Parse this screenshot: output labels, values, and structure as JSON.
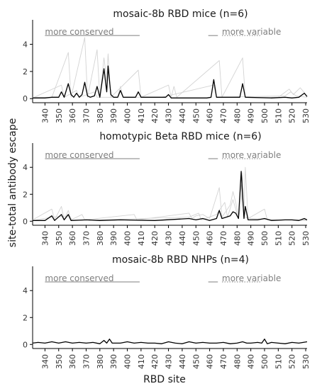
{
  "figure": {
    "ylabel": "site-total antibody escape",
    "xlabel": "RBD site"
  },
  "chart_data": [
    {
      "type": "line",
      "title": "mosaic-8b RBD mice (n=6)",
      "xlim": [
        331,
        531
      ],
      "ylim": [
        -0.3,
        5.8
      ],
      "yticks": [
        0,
        2,
        4
      ],
      "xticks": [
        340,
        350,
        360,
        370,
        380,
        390,
        400,
        410,
        420,
        430,
        440,
        450,
        460,
        470,
        480,
        490,
        500,
        510,
        520,
        530
      ],
      "annotations": {
        "left": "more conserved",
        "right": "more variable"
      },
      "series": [
        {
          "role": "mean",
          "color": "#000000",
          "points": [
            [
              331,
              0.05
            ],
            [
              340,
              0.05
            ],
            [
              345,
              0.1
            ],
            [
              350,
              0.1
            ],
            [
              352,
              0.5
            ],
            [
              354,
              0.1
            ],
            [
              357,
              1.1
            ],
            [
              359,
              0.3
            ],
            [
              361,
              0.1
            ],
            [
              363,
              0.4
            ],
            [
              365,
              0.1
            ],
            [
              367,
              0.3
            ],
            [
              369,
              1.2
            ],
            [
              371,
              0.2
            ],
            [
              373,
              0.1
            ],
            [
              376,
              0.2
            ],
            [
              378,
              0.9
            ],
            [
              380,
              0.1
            ],
            [
              383,
              2.2
            ],
            [
              385,
              0.5
            ],
            [
              386,
              2.4
            ],
            [
              388,
              0.3
            ],
            [
              390,
              0.1
            ],
            [
              393,
              0.1
            ],
            [
              395,
              0.6
            ],
            [
              397,
              0.1
            ],
            [
              406,
              0.1
            ],
            [
              408,
              0.5
            ],
            [
              410,
              0.1
            ],
            [
              428,
              0.1
            ],
            [
              430,
              0.3
            ],
            [
              432,
              0.05
            ],
            [
              458,
              0.05
            ],
            [
              461,
              0.1
            ],
            [
              463,
              1.4
            ],
            [
              465,
              0.1
            ],
            [
              482,
              0.1
            ],
            [
              484,
              1.1
            ],
            [
              486,
              0.1
            ],
            [
              505,
              0.05
            ],
            [
              515,
              0.1
            ],
            [
              520,
              0.05
            ],
            [
              525,
              0.1
            ],
            [
              529,
              0.4
            ],
            [
              531,
              0.15
            ]
          ]
        },
        {
          "role": "animal",
          "color": "#d3d3d3",
          "points": [
            [
              331,
              0.1
            ],
            [
              345,
              0.1
            ],
            [
              357,
              3.4
            ],
            [
              359,
              0.1
            ],
            [
              369,
              4.5
            ],
            [
              371,
              0.1
            ],
            [
              378,
              3.6
            ],
            [
              380,
              0.1
            ],
            [
              383,
              3.0
            ],
            [
              385,
              1.3
            ],
            [
              386,
              3.3
            ],
            [
              388,
              0.1
            ],
            [
              408,
              2.1
            ],
            [
              410,
              0.1
            ],
            [
              430,
              1.0
            ],
            [
              432,
              0.1
            ],
            [
              434,
              0.9
            ],
            [
              436,
              0.1
            ],
            [
              467,
              2.8
            ],
            [
              469,
              0.1
            ],
            [
              484,
              3.0
            ],
            [
              486,
              0.1
            ],
            [
              510,
              0.1
            ],
            [
              514,
              0.4
            ],
            [
              518,
              0.7
            ],
            [
              521,
              0.3
            ],
            [
              526,
              0.8
            ],
            [
              531,
              0.2
            ]
          ]
        },
        {
          "role": "animal",
          "color": "#d3d3d3",
          "points": [
            [
              331,
              0.05
            ],
            [
              352,
              1.0
            ],
            [
              354,
              0.1
            ],
            [
              363,
              0.6
            ],
            [
              365,
              0.1
            ],
            [
              376,
              0.5
            ],
            [
              378,
              0.1
            ],
            [
              393,
              0.1
            ],
            [
              395,
              0.9
            ],
            [
              397,
              0.1
            ],
            [
              425,
              0.1
            ],
            [
              463,
              1.0
            ],
            [
              465,
              0.1
            ],
            [
              515,
              0.2
            ],
            [
              519,
              0.5
            ],
            [
              523,
              0.2
            ],
            [
              531,
              0.1
            ]
          ]
        }
      ]
    },
    {
      "type": "line",
      "title": "homotypic Beta RBD mice (n=6)",
      "xlim": [
        331,
        531
      ],
      "ylim": [
        -0.3,
        5.8
      ],
      "yticks": [
        0,
        2,
        4
      ],
      "xticks": [
        340,
        350,
        360,
        370,
        380,
        390,
        400,
        410,
        420,
        430,
        440,
        450,
        460,
        470,
        480,
        490,
        500,
        510,
        520,
        530
      ],
      "annotations": {
        "left": "more conserved",
        "right": "more variable"
      },
      "series": [
        {
          "role": "mean",
          "color": "#000000",
          "points": [
            [
              331,
              0.05
            ],
            [
              340,
              0.05
            ],
            [
              345,
              0.4
            ],
            [
              347,
              0.05
            ],
            [
              352,
              0.5
            ],
            [
              354,
              0.1
            ],
            [
              357,
              0.5
            ],
            [
              359,
              0.05
            ],
            [
              370,
              0.1
            ],
            [
              380,
              0.05
            ],
            [
              395,
              0.1
            ],
            [
              420,
              0.05
            ],
            [
              445,
              0.2
            ],
            [
              450,
              0.1
            ],
            [
              455,
              0.2
            ],
            [
              460,
              0.05
            ],
            [
              465,
              0.2
            ],
            [
              467,
              0.8
            ],
            [
              469,
              0.2
            ],
            [
              472,
              0.3
            ],
            [
              475,
              0.4
            ],
            [
              477,
              0.7
            ],
            [
              479,
              0.6
            ],
            [
              481,
              0.2
            ],
            [
              483,
              3.7
            ],
            [
              485,
              0.2
            ],
            [
              486,
              1.1
            ],
            [
              488,
              0.1
            ],
            [
              495,
              0.1
            ],
            [
              500,
              0.2
            ],
            [
              505,
              0.05
            ],
            [
              515,
              0.1
            ],
            [
              520,
              0.1
            ],
            [
              525,
              0.05
            ],
            [
              529,
              0.2
            ],
            [
              531,
              0.1
            ]
          ]
        },
        {
          "role": "animal",
          "color": "#d3d3d3",
          "points": [
            [
              331,
              0.1
            ],
            [
              345,
              0.9
            ],
            [
              347,
              0.1
            ],
            [
              352,
              1.1
            ],
            [
              354,
              0.1
            ],
            [
              357,
              0.8
            ],
            [
              359,
              0.1
            ],
            [
              367,
              0.5
            ],
            [
              369,
              0.1
            ],
            [
              405,
              0.5
            ],
            [
              407,
              0.1
            ],
            [
              445,
              0.6
            ],
            [
              447,
              0.2
            ],
            [
              450,
              0.4
            ],
            [
              455,
              0.5
            ],
            [
              460,
              0.2
            ],
            [
              467,
              2.5
            ],
            [
              469,
              0.3
            ],
            [
              475,
              1.2
            ],
            [
              477,
              2.2
            ],
            [
              479,
              1.4
            ],
            [
              481,
              0.3
            ],
            [
              483,
              1.2
            ],
            [
              484,
              3.6
            ],
            [
              485,
              0.5
            ],
            [
              486,
              4.0
            ],
            [
              488,
              0.2
            ],
            [
              500,
              0.9
            ],
            [
              502,
              0.1
            ],
            [
              520,
              0.1
            ],
            [
              531,
              0.1
            ]
          ]
        },
        {
          "role": "animal",
          "color": "#d3d3d3",
          "points": [
            [
              331,
              0.05
            ],
            [
              345,
              0.3
            ],
            [
              358,
              0.4
            ],
            [
              360,
              0.05
            ],
            [
              445,
              0.3
            ],
            [
              452,
              0.6
            ],
            [
              454,
              0.1
            ],
            [
              465,
              0.5
            ],
            [
              471,
              1.4
            ],
            [
              473,
              0.3
            ],
            [
              477,
              1.6
            ],
            [
              479,
              0.9
            ],
            [
              481,
              0.2
            ],
            [
              483,
              2.7
            ],
            [
              485,
              0.3
            ],
            [
              490,
              0.2
            ],
            [
              510,
              0.1
            ],
            [
              531,
              0.05
            ]
          ]
        }
      ]
    },
    {
      "type": "line",
      "title": "mosaic-8b RBD NHPs (n=4)",
      "xlim": [
        331,
        531
      ],
      "ylim": [
        -0.3,
        5.8
      ],
      "yticks": [
        0,
        2,
        4
      ],
      "xticks": [
        340,
        350,
        360,
        370,
        380,
        390,
        400,
        410,
        420,
        430,
        440,
        450,
        460,
        470,
        480,
        490,
        500,
        510,
        520,
        530
      ],
      "annotations": {
        "left": "more conserved",
        "right": "more variable"
      },
      "series": [
        {
          "role": "mean",
          "color": "#000000",
          "points": [
            [
              331,
              0.1
            ],
            [
              335,
              0.15
            ],
            [
              340,
              0.1
            ],
            [
              345,
              0.2
            ],
            [
              350,
              0.1
            ],
            [
              355,
              0.2
            ],
            [
              360,
              0.1
            ],
            [
              365,
              0.15
            ],
            [
              370,
              0.1
            ],
            [
              375,
              0.15
            ],
            [
              380,
              0.05
            ],
            [
              383,
              0.3
            ],
            [
              385,
              0.1
            ],
            [
              387,
              0.4
            ],
            [
              389,
              0.1
            ],
            [
              395,
              0.1
            ],
            [
              400,
              0.2
            ],
            [
              405,
              0.1
            ],
            [
              410,
              0.15
            ],
            [
              415,
              0.1
            ],
            [
              420,
              0.1
            ],
            [
              425,
              0.05
            ],
            [
              430,
              0.2
            ],
            [
              435,
              0.1
            ],
            [
              440,
              0.05
            ],
            [
              445,
              0.2
            ],
            [
              450,
              0.1
            ],
            [
              455,
              0.15
            ],
            [
              460,
              0.1
            ],
            [
              465,
              0.1
            ],
            [
              470,
              0.15
            ],
            [
              475,
              0.05
            ],
            [
              480,
              0.1
            ],
            [
              484,
              0.2
            ],
            [
              487,
              0.1
            ],
            [
              490,
              0.1
            ],
            [
              495,
              0.15
            ],
            [
              498,
              0.1
            ],
            [
              500,
              0.4
            ],
            [
              502,
              0.05
            ],
            [
              505,
              0.15
            ],
            [
              510,
              0.1
            ],
            [
              515,
              0.05
            ],
            [
              520,
              0.15
            ],
            [
              525,
              0.1
            ],
            [
              531,
              0.2
            ]
          ]
        }
      ]
    }
  ]
}
